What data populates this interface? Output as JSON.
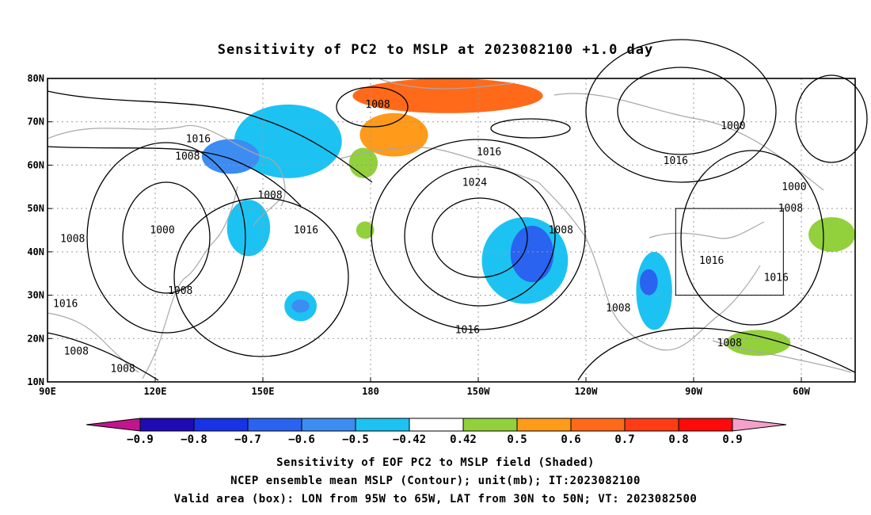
{
  "chart_data": {
    "type": "heatmap",
    "title": "Sensitivity of PC2 to MSLP at 2023082100 +1.0 day",
    "x_tick_labels": [
      "90E",
      "120E",
      "150E",
      "180",
      "150W",
      "120W",
      "90W",
      "60W"
    ],
    "x_tick_lon": [
      90,
      120,
      150,
      180,
      210,
      240,
      270,
      300
    ],
    "y_tick_labels": [
      "80N",
      "70N",
      "60N",
      "50N",
      "40N",
      "30N",
      "20N",
      "10N"
    ],
    "y_tick_lat": [
      80,
      70,
      60,
      50,
      40,
      30,
      20,
      10
    ],
    "xlim": [
      90,
      315
    ],
    "ylim": [
      10,
      80
    ],
    "grid": true,
    "colorbar": {
      "labels": [
        "-0.9",
        "-0.8",
        "-0.7",
        "-0.6",
        "-0.5",
        "-0.42",
        "0.42",
        "0.5",
        "0.6",
        "0.7",
        "0.8",
        "0.9"
      ],
      "colors": [
        "#1e0bb4",
        "#1832e6",
        "#2a63f0",
        "#3d8cf2",
        "#1cc3f2",
        "#ffffff",
        "#92d03c",
        "#ff9a1a",
        "#ff6a1a",
        "#ff3c14",
        "#ff0a0a"
      ],
      "below_color": "#c0168c",
      "above_color": "#f5a0c8"
    },
    "contour_labels": [
      {
        "text": "1008",
        "lon": 182,
        "lat": 74
      },
      {
        "text": "1000",
        "lon": 281,
        "lat": 69
      },
      {
        "text": "1016",
        "lon": 132,
        "lat": 66
      },
      {
        "text": "1016",
        "lon": 213,
        "lat": 63
      },
      {
        "text": "1016",
        "lon": 265,
        "lat": 61
      },
      {
        "text": "1008",
        "lon": 129,
        "lat": 62
      },
      {
        "text": "1024",
        "lon": 209,
        "lat": 56
      },
      {
        "text": "1000",
        "lon": 298,
        "lat": 55
      },
      {
        "text": "1008",
        "lon": 152,
        "lat": 53
      },
      {
        "text": "1008",
        "lon": 297,
        "lat": 50
      },
      {
        "text": "1016",
        "lon": 162,
        "lat": 45
      },
      {
        "text": "1008",
        "lon": 97,
        "lat": 43
      },
      {
        "text": "1000",
        "lon": 122,
        "lat": 45
      },
      {
        "text": "1008",
        "lon": 233,
        "lat": 45
      },
      {
        "text": "1016",
        "lon": 275,
        "lat": 38
      },
      {
        "text": "1016",
        "lon": 293,
        "lat": 34
      },
      {
        "text": "1008",
        "lon": 127,
        "lat": 31
      },
      {
        "text": "1016",
        "lon": 95,
        "lat": 28
      },
      {
        "text": "1008",
        "lon": 249,
        "lat": 27
      },
      {
        "text": "1016",
        "lon": 207,
        "lat": 22
      },
      {
        "text": "1008",
        "lon": 280,
        "lat": 19
      },
      {
        "text": "1008",
        "lon": 98,
        "lat": 17
      },
      {
        "text": "1008",
        "lon": 111,
        "lat": 13
      }
    ],
    "shaded_regions": [
      {
        "color": "#ff6a1a",
        "lon": [
          175,
          228
        ],
        "lat": [
          72,
          80
        ]
      },
      {
        "color": "#ff9a1a",
        "lon": [
          177,
          196
        ],
        "lat": [
          62,
          72
        ]
      },
      {
        "color": "#92d03c",
        "lon": [
          174,
          182
        ],
        "lat": [
          57,
          64
        ]
      },
      {
        "color": "#92d03c",
        "lon": [
          176,
          181
        ],
        "lat": [
          43,
          47
        ]
      },
      {
        "color": "#1cc3f2",
        "lon": [
          142,
          172
        ],
        "lat": [
          57,
          74
        ]
      },
      {
        "color": "#3d8cf2",
        "lon": [
          133,
          149
        ],
        "lat": [
          58,
          66
        ]
      },
      {
        "color": "#1cc3f2",
        "lon": [
          140,
          152
        ],
        "lat": [
          39,
          52
        ]
      },
      {
        "color": "#1cc3f2",
        "lon": [
          156,
          165
        ],
        "lat": [
          24,
          31
        ]
      },
      {
        "color": "#3d8cf2",
        "lon": [
          158,
          163
        ],
        "lat": [
          26,
          29
        ]
      },
      {
        "color": "#1cc3f2",
        "lon": [
          211,
          235
        ],
        "lat": [
          28,
          48
        ]
      },
      {
        "color": "#2a63f0",
        "lon": [
          219,
          231
        ],
        "lat": [
          33,
          46
        ]
      },
      {
        "color": "#1cc3f2",
        "lon": [
          254,
          264
        ],
        "lat": [
          22,
          40
        ]
      },
      {
        "color": "#2a63f0",
        "lon": [
          255,
          260
        ],
        "lat": [
          30,
          36
        ]
      },
      {
        "color": "#92d03c",
        "lon": [
          279,
          297
        ],
        "lat": [
          16,
          22
        ]
      },
      {
        "color": "#92d03c",
        "lon": [
          302,
          315
        ],
        "lat": [
          40,
          48
        ]
      }
    ],
    "valid_box": {
      "lon": [
        265,
        295
      ],
      "lat": [
        30,
        50
      ]
    }
  },
  "footer": {
    "line1": "Sensitivity of EOF PC2 to MSLP field (Shaded)",
    "line2": "NCEP ensemble mean MSLP (Contour); unit(mb); IT:2023082100",
    "line3": "Valid area (box): LON from 95W to 65W, LAT from 30N to 50N; VT: 2023082500"
  }
}
